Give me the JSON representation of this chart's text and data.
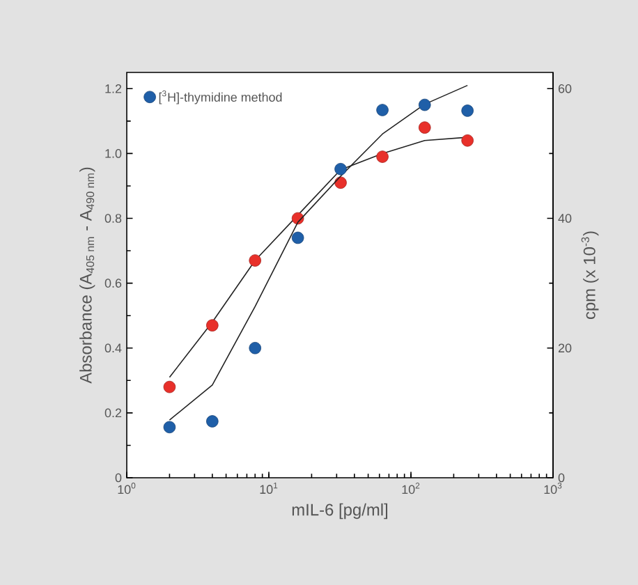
{
  "chart_data": {
    "type": "scatter",
    "xlabel": "mIL-6 [pg/ml]",
    "ylabel": "Absorbance (A$_{405 nm}$ - A$_{490 nm}$)",
    "y2label": "cpm (x 10$^{-3}$)",
    "log": "x",
    "xlim": [
      1,
      1000
    ],
    "xticks": [
      {
        "value": 1,
        "label": "10$^{0}$"
      },
      {
        "value": 10,
        "label": "10$^{1}$"
      },
      {
        "value": 100,
        "label": "10$^{2}$"
      },
      {
        "value": 1000,
        "label": "10$^{3}$"
      }
    ],
    "ylim": [
      0,
      1.25
    ],
    "yticks": [
      0,
      0.2,
      0.4,
      0.6,
      0.8,
      {
        "value": 1.0,
        "label": "1.0"
      },
      1.2
    ],
    "y2lim": [
      0,
      62.5
    ],
    "y2ticks": [
      0,
      20,
      40,
      60
    ],
    "legend": "top left",
    "grid": false,
    "series": [
      {
        "type": "line",
        "color": "#222222",
        "marker": "none",
        "axis": "y",
        "x": [
          2,
          4,
          8,
          16,
          32,
          63,
          125,
          250
        ],
        "values": [
          0.31,
          0.48,
          0.67,
          0.81,
          0.95,
          1.0,
          1.04,
          1.05
        ]
      },
      {
        "type": "line",
        "color": "#222222",
        "marker": "none",
        "axis": "y2",
        "x": [
          2,
          4,
          8,
          16,
          32,
          63,
          125,
          250
        ],
        "values": [
          8.9,
          14.3,
          26.4,
          39.4,
          46.5,
          53,
          57.6,
          60.5
        ]
      },
      {
        "color": "#e8302a",
        "marker": "circle",
        "axis": "y",
        "x": [
          2,
          4,
          8,
          16,
          32,
          63,
          125,
          250
        ],
        "values": [
          0.28,
          0.47,
          0.67,
          0.8,
          0.91,
          0.99,
          1.08,
          1.04
        ]
      },
      {
        "name": "[$^{3}$H]-thymidine method",
        "color": "#1f5fa8",
        "marker": "circle",
        "axis": "y2",
        "x": [
          2,
          4,
          8,
          16,
          32,
          63,
          125,
          250
        ],
        "values": [
          7.8,
          8.7,
          20,
          37,
          47.6,
          56.7,
          57.5,
          56.6
        ]
      }
    ]
  }
}
